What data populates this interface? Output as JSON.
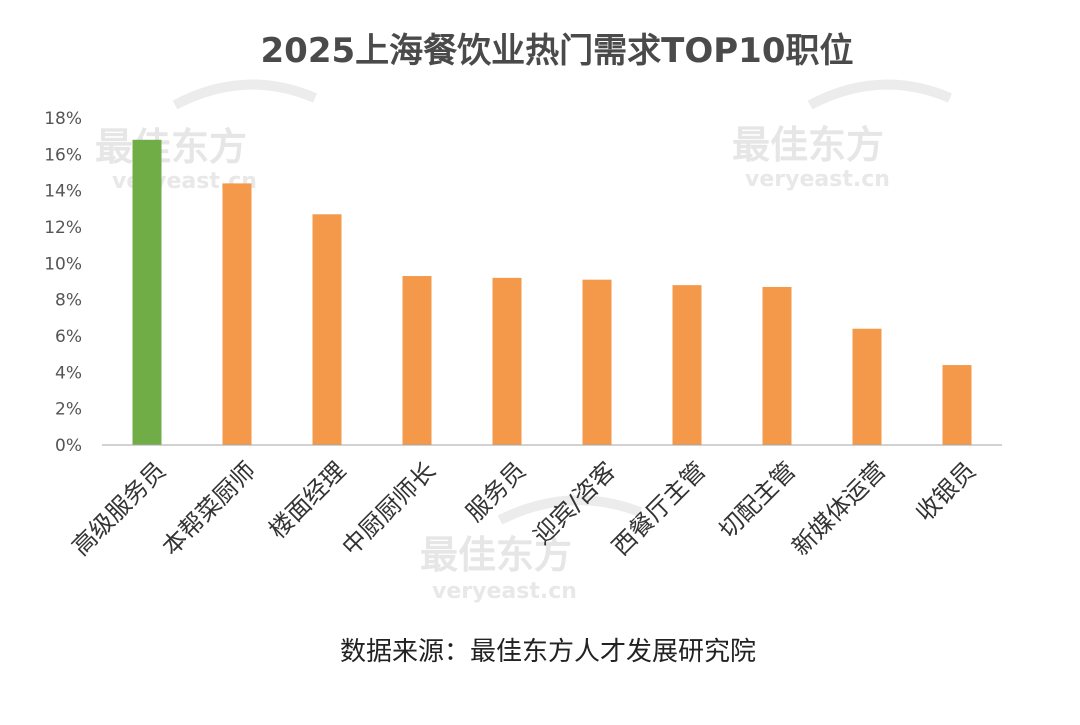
{
  "chart_data": {
    "type": "bar",
    "title": "2025上海餐饮业热门需求TOP10职位",
    "categories": [
      "高级服务员",
      "本帮菜厨师",
      "楼面经理",
      "中厨厨师长",
      "服务员",
      "迎宾/咨客",
      "西餐厅主管",
      "切配主管",
      "新媒体运营",
      "收银员"
    ],
    "values": [
      16.8,
      14.4,
      12.7,
      9.3,
      9.2,
      9.1,
      8.8,
      8.7,
      6.4,
      4.4
    ],
    "y_ticks": [
      "0%",
      "2%",
      "4%",
      "6%",
      "8%",
      "10%",
      "12%",
      "14%",
      "16%",
      "18%"
    ],
    "ylim": [
      0,
      18
    ],
    "grid": false,
    "legend": "none",
    "highlight_index": 0,
    "colors": {
      "highlight": "#70AD47",
      "bar": "#F4984A",
      "axis": "#a6a6a6"
    }
  },
  "source": "数据来源：最佳东方人才发展研究院",
  "watermark": {
    "brand": "最佳东方",
    "site": "veryeast.cn"
  }
}
